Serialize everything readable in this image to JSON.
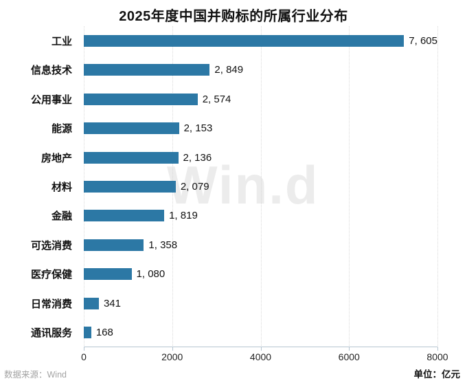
{
  "chart_data": {
    "type": "bar",
    "orientation": "horizontal",
    "title": "2025年度中国并购标的所属行业分布",
    "categories": [
      "工业",
      "信息技术",
      "公用事业",
      "能源",
      "房地产",
      "材料",
      "金融",
      "可选消费",
      "医疗保健",
      "日常消费",
      "通讯服务"
    ],
    "values": [
      7605,
      2849,
      2574,
      2153,
      2136,
      2079,
      1819,
      1358,
      1080,
      341,
      168
    ],
    "value_labels": [
      "7, 605",
      "2, 849",
      "2, 574",
      "2, 153",
      "2, 136",
      "2, 079",
      "1, 819",
      "1, 358",
      "1, 080",
      "341",
      "168"
    ],
    "xlabel": "",
    "ylabel": "",
    "xlim": [
      0,
      8000
    ],
    "x_ticks": [
      0,
      2000,
      4000,
      6000,
      8000
    ],
    "grid": "vertical-dotted",
    "legend": "none",
    "bar_color": "#2c78a5"
  },
  "watermark": {
    "text": "Win.d"
  },
  "footer": {
    "source": "数据来源：Wind",
    "unit": "单位：亿元"
  }
}
